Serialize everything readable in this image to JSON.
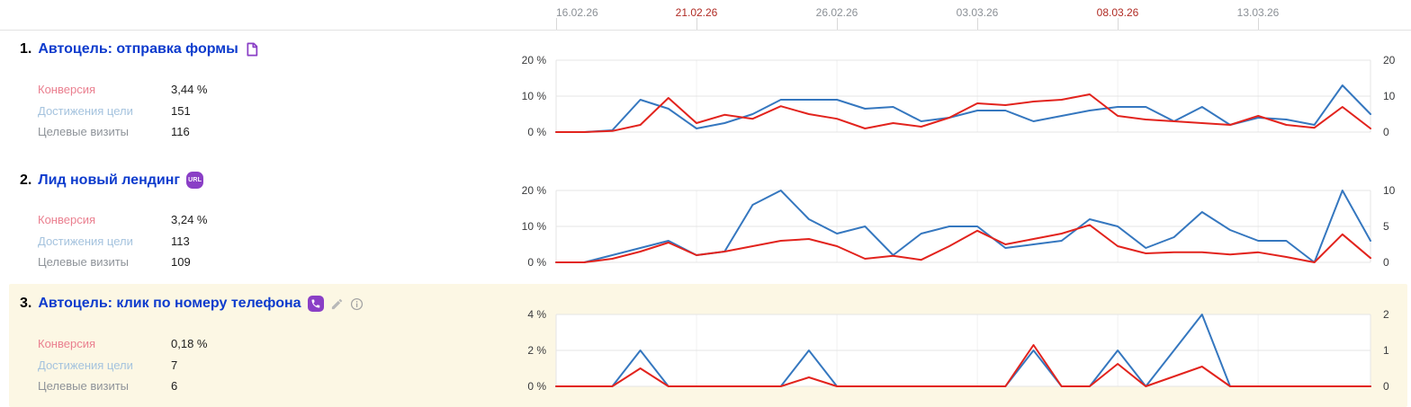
{
  "colors": {
    "link_blue": "#0d3bcd",
    "chart_blue": "#3577bf",
    "chart_red": "#e2231d",
    "weekend_red": "#b02b24",
    "date_gray": "#8b9096",
    "label_conversion_pink": "#ea7f8f",
    "label_reaches_blue": "#a5c3de",
    "label_visits_gray": "#8e9399",
    "highlight_row_bg": "#fcf7e4",
    "goal_type_purple": "#8a3fc6",
    "grid_line": "#e6e6e6"
  },
  "header": {
    "dates": [
      {
        "label": "16.02.26",
        "weekend": false
      },
      {
        "label": "21.02.26",
        "weekend": true
      },
      {
        "label": "26.02.26",
        "weekend": false
      },
      {
        "label": "03.03.26",
        "weekend": false
      },
      {
        "label": "08.03.26",
        "weekend": true
      },
      {
        "label": "13.03.26",
        "weekend": false
      }
    ]
  },
  "goals": [
    {
      "index": "1.",
      "title": "Автоцель: отправка формы",
      "type_icon": "form-goal-icon",
      "metrics": [
        {
          "label": "Конверсия",
          "value": "3,44 %"
        },
        {
          "label": "Достижения цели",
          "value": "151"
        },
        {
          "label": "Целевые визиты",
          "value": "116"
        }
      ],
      "highlighted": false,
      "chart_data": {
        "type": "line",
        "x_start": "16.02.26",
        "x_end": "17.03.26",
        "n_points": 30,
        "x_tick_labels": [
          "16.02.26",
          "21.02.26",
          "26.02.26",
          "03.03.26",
          "08.03.26",
          "13.03.26"
        ],
        "grid": true,
        "left_axis": {
          "labels": [
            "20 %",
            "10 %",
            "0 %"
          ],
          "max": 20,
          "unit": "%"
        },
        "right_axis": {
          "labels": [
            "20",
            "10",
            "0"
          ],
          "max": 20,
          "unit": "count"
        },
        "series": [
          {
            "name": "Достижения цели",
            "axis": "right",
            "color": "#3577bf",
            "values": [
              0,
              0,
              0.5,
              9,
              6.5,
              1,
              2.5,
              5,
              9,
              9,
              9,
              6.5,
              7,
              3,
              4,
              6,
              6,
              3,
              4.5,
              6,
              7,
              7,
              3,
              7,
              2,
              4,
              3.5,
              2,
              13,
              5
            ]
          },
          {
            "name": "Конверсия",
            "axis": "left",
            "color": "#e2231d",
            "values": [
              0,
              0,
              0.3,
              2,
              9.5,
              2.5,
              4.8,
              3.7,
              7.2,
              5,
              3.7,
              1,
              2.5,
              1.5,
              4,
              8,
              7.5,
              8.5,
              9,
              10.5,
              4.5,
              3.5,
              3,
              2.5,
              2,
              4.5,
              2,
              1.2,
              7,
              1
            ]
          }
        ]
      }
    },
    {
      "index": "2.",
      "title": "Лид новый лендинг",
      "type_icon": "url-goal-icon",
      "type_badge": "URL",
      "metrics": [
        {
          "label": "Конверсия",
          "value": "3,24 %"
        },
        {
          "label": "Достижения цели",
          "value": "113"
        },
        {
          "label": "Целевые визиты",
          "value": "109"
        }
      ],
      "highlighted": false,
      "chart_data": {
        "type": "line",
        "x_start": "16.02.26",
        "x_end": "17.03.26",
        "n_points": 30,
        "x_tick_labels": [
          "16.02.26",
          "21.02.26",
          "26.02.26",
          "03.03.26",
          "08.03.26",
          "13.03.26"
        ],
        "grid": true,
        "left_axis": {
          "labels": [
            "20 %",
            "10 %",
            "0 %"
          ],
          "max": 20,
          "unit": "%"
        },
        "right_axis": {
          "labels": [
            "10",
            "5",
            "0"
          ],
          "max": 10,
          "unit": "count"
        },
        "series": [
          {
            "name": "Достижения цели",
            "axis": "right",
            "color": "#3577bf",
            "values": [
              0,
              0,
              1,
              2,
              3,
              1,
              1.5,
              8,
              10,
              6,
              4,
              5,
              1,
              4,
              5,
              5,
              2,
              2.5,
              3,
              6,
              5,
              2,
              3.5,
              7,
              4.5,
              3,
              3,
              0,
              10,
              3
            ]
          },
          {
            "name": "Конверсия",
            "axis": "left",
            "color": "#e2231d",
            "values": [
              0,
              0,
              1,
              3,
              5.5,
              2,
              3,
              4.5,
              6,
              6.5,
              4.5,
              1,
              1.8,
              0.7,
              4.5,
              8.8,
              5,
              6.5,
              8,
              10.4,
              4.5,
              2.5,
              2.8,
              2.8,
              2.2,
              2.8,
              1.5,
              0,
              7.8,
              1.2
            ]
          }
        ]
      }
    },
    {
      "index": "3.",
      "title": "Автоцель: клик по номеру телефона",
      "type_icon": "phone-goal-icon",
      "metrics": [
        {
          "label": "Конверсия",
          "value": "0,18 %"
        },
        {
          "label": "Достижения цели",
          "value": "7"
        },
        {
          "label": "Целевые визиты",
          "value": "6"
        }
      ],
      "highlighted": true,
      "chart_data": {
        "type": "line",
        "x_start": "16.02.26",
        "x_end": "17.03.26",
        "n_points": 30,
        "x_tick_labels": [
          "16.02.26",
          "21.02.26",
          "26.02.26",
          "03.03.26",
          "08.03.26",
          "13.03.26"
        ],
        "grid": true,
        "left_axis": {
          "labels": [
            "4 %",
            "2 %",
            "0 %"
          ],
          "max": 4,
          "unit": "%"
        },
        "right_axis": {
          "labels": [
            "2",
            "1",
            "0"
          ],
          "max": 2,
          "unit": "count"
        },
        "series": [
          {
            "name": "Достижения цели",
            "axis": "right",
            "color": "#3577bf",
            "values": [
              0,
              0,
              0,
              1,
              0,
              0,
              0,
              0,
              0,
              1,
              0,
              0,
              0,
              0,
              0,
              0,
              0,
              1,
              0,
              0,
              1,
              0,
              1,
              2,
              0,
              0,
              0,
              0,
              0,
              0
            ]
          },
          {
            "name": "Конверсия",
            "axis": "left",
            "color": "#e2231d",
            "values": [
              0,
              0,
              0,
              1,
              0,
              0,
              0,
              0,
              0,
              0.5,
              0,
              0,
              0,
              0,
              0,
              0,
              0,
              2.3,
              0,
              0,
              1.25,
              0,
              0.55,
              1.1,
              0,
              0,
              0,
              0,
              0,
              0
            ]
          }
        ]
      }
    }
  ]
}
